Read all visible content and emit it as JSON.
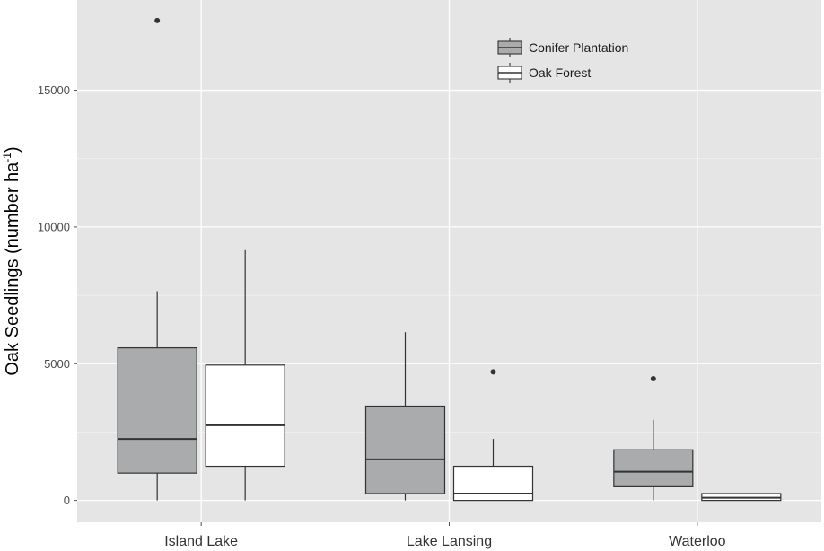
{
  "chart_data": {
    "type": "boxplot",
    "title": "",
    "xlabel": "",
    "ylabel": "Oak Seedlings (number ha",
    "ylabel_superscript": "-1",
    "ylabel_suffix": ")",
    "ylim": [
      -800,
      18300
    ],
    "yticks": [
      0,
      5000,
      10000,
      15000
    ],
    "ytick_labels": [
      "0",
      "5000",
      "10000",
      "15000"
    ],
    "grid": true,
    "legend_position": "top-right",
    "categories": [
      "Island  Lake",
      "Lake Lansing",
      "Waterloo"
    ],
    "series": [
      {
        "name": "Conifer  Plantation",
        "color": "#a9abad",
        "boxes": [
          {
            "min": 0,
            "q1": 1000,
            "median": 2250,
            "q3": 5580,
            "max": 7650,
            "outliers": [
              17550
            ]
          },
          {
            "min": 0,
            "q1": 250,
            "median": 1500,
            "q3": 3450,
            "max": 6150,
            "outliers": []
          },
          {
            "min": 0,
            "q1": 500,
            "median": 1050,
            "q3": 1850,
            "max": 2950,
            "outliers": [
              4450
            ]
          }
        ]
      },
      {
        "name": "Oak Forest",
        "color": "#ffffff",
        "boxes": [
          {
            "min": 0,
            "q1": 1250,
            "median": 2750,
            "q3": 4950,
            "max": 9150,
            "outliers": []
          },
          {
            "min": 0,
            "q1": 0,
            "median": 250,
            "q3": 1250,
            "max": 2250,
            "outliers": [
              4700
            ]
          },
          {
            "min": 0,
            "q1": 0,
            "median": 100,
            "q3": 250,
            "max": 250,
            "outliers": []
          }
        ]
      }
    ]
  }
}
